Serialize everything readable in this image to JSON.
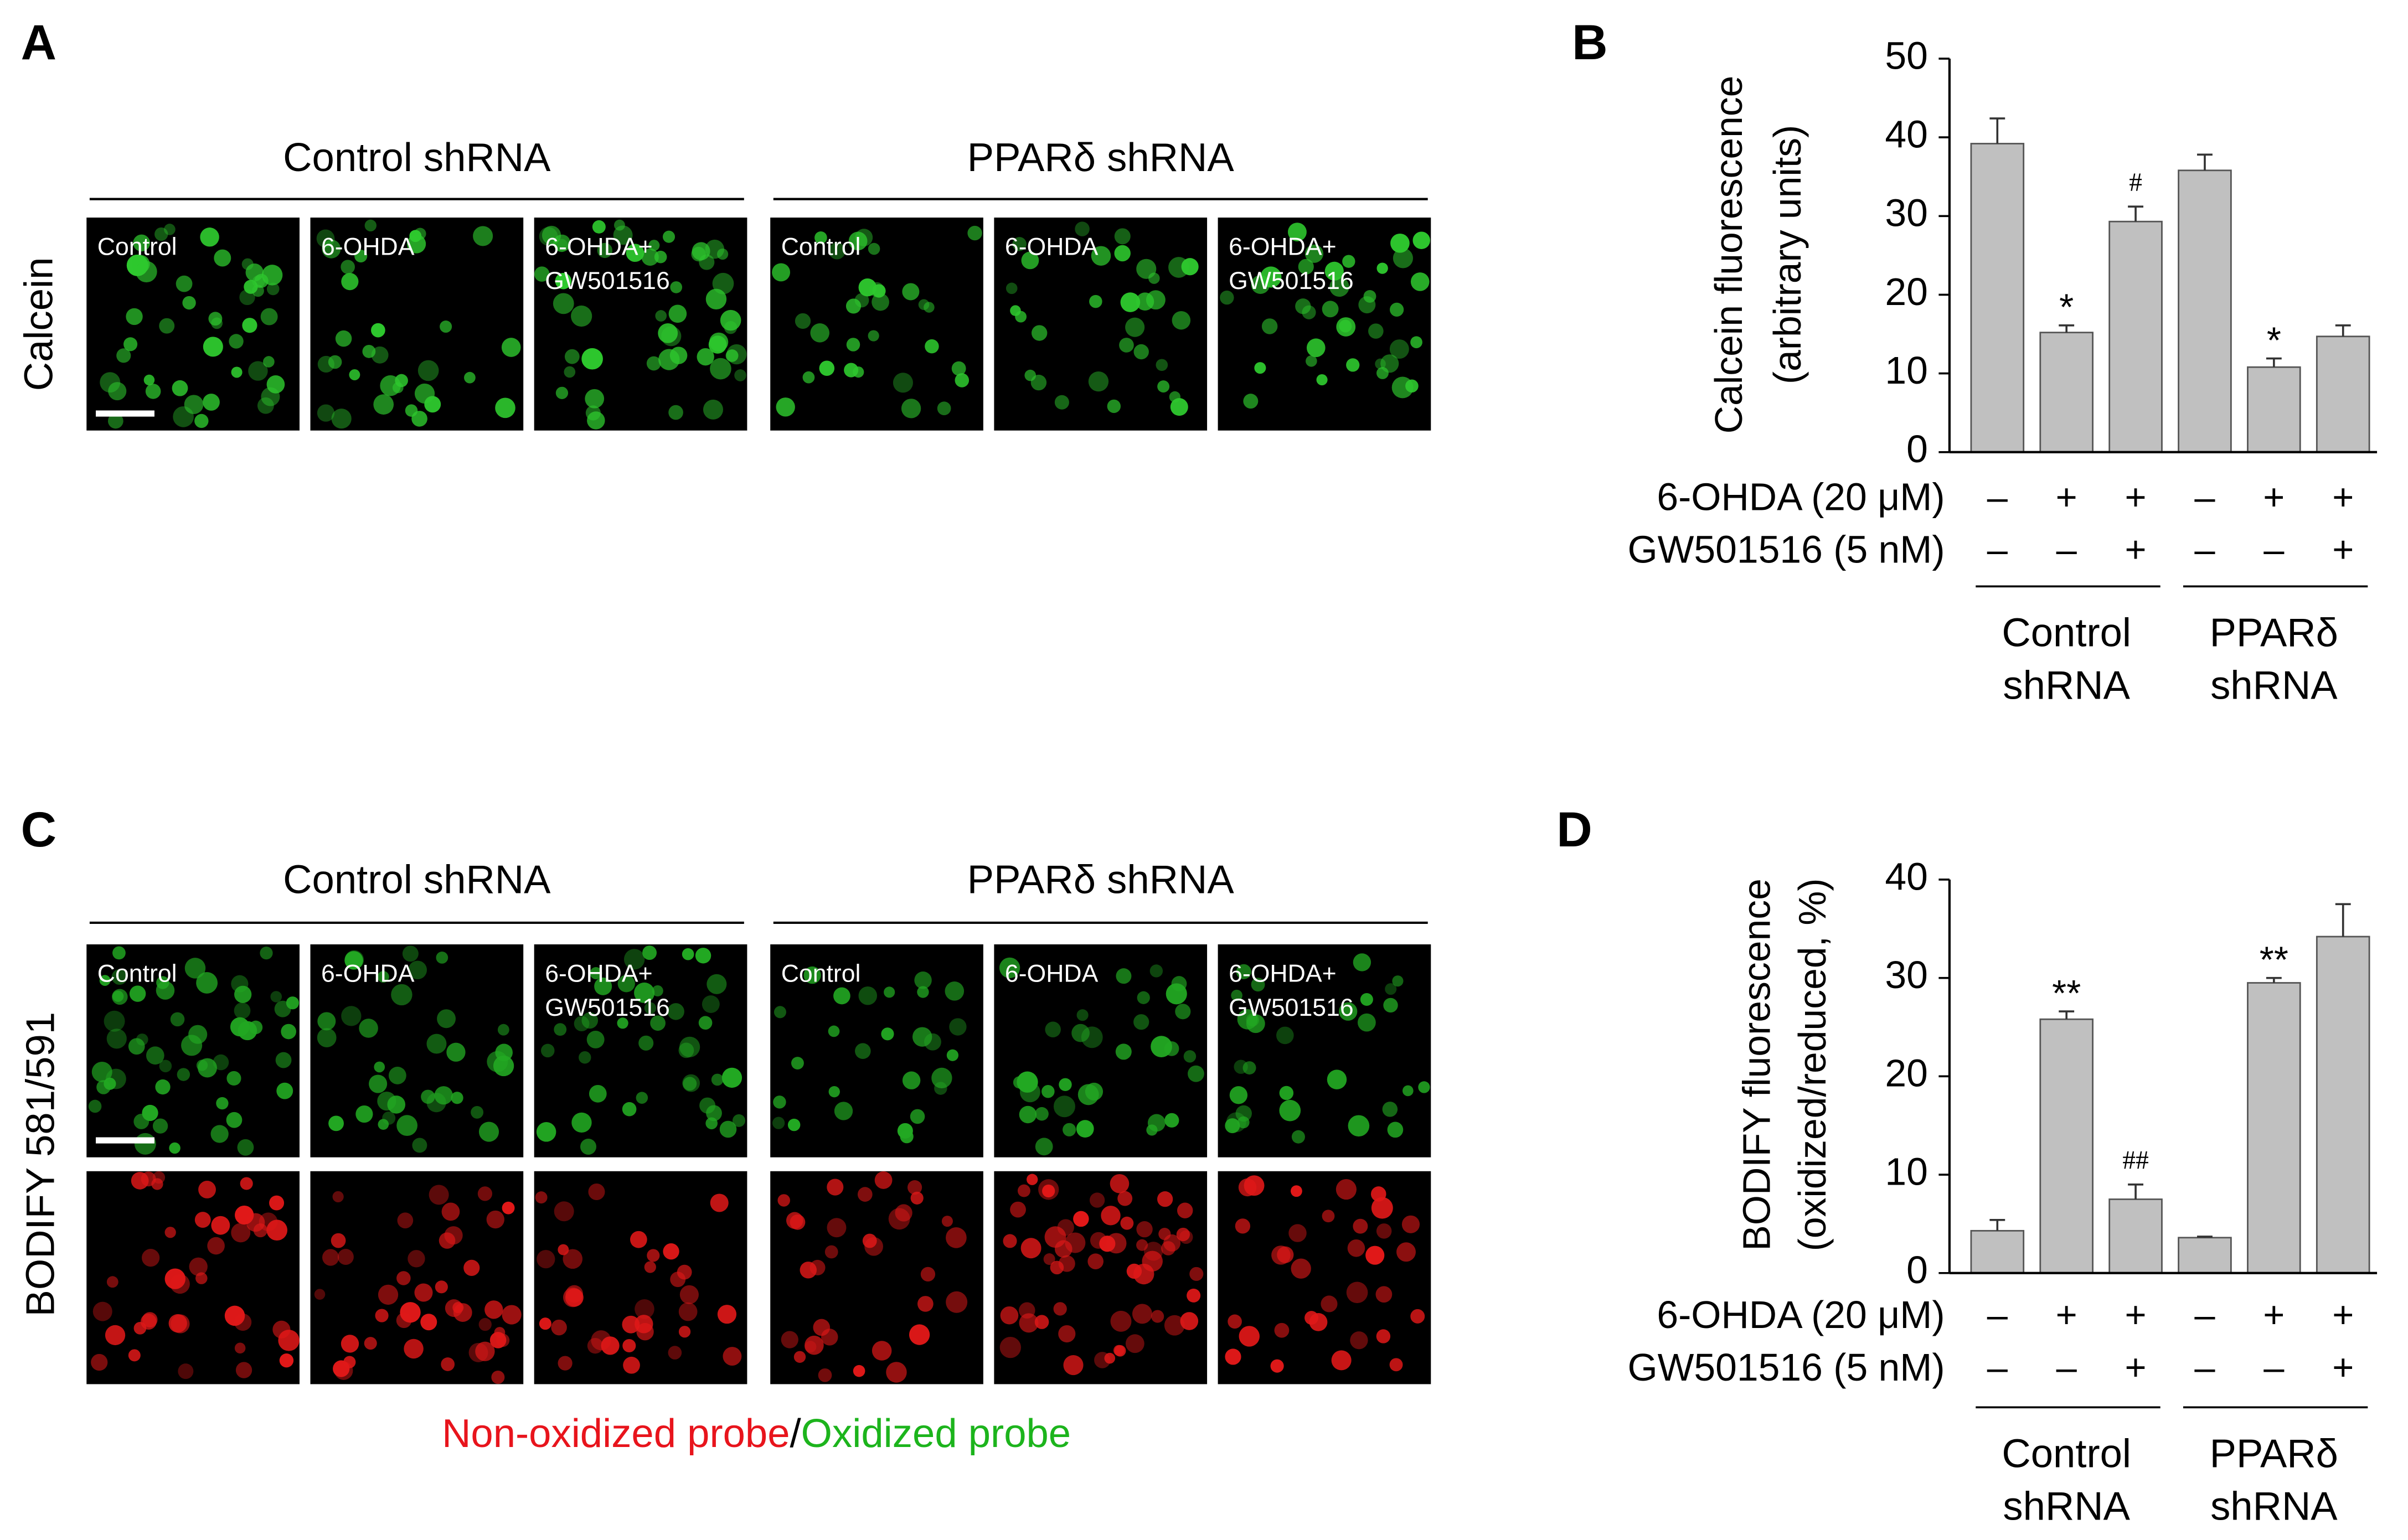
{
  "image_panels": [
    {
      "letter": "A",
      "row_labels": [
        "Calcein"
      ],
      "row_colors": [
        "#2ec82e"
      ],
      "groups": [
        {
          "title": "Control shRNA",
          "images": [
            [
              "Control"
            ],
            [
              "6-OHDA"
            ],
            [
              "6-OHDA+",
              "GW501516"
            ]
          ]
        },
        {
          "title": "PPARδ shRNA",
          "images": [
            [
              "Control"
            ],
            [
              "6-OHDA"
            ],
            [
              "6-OHDA+",
              "GW501516"
            ]
          ]
        }
      ]
    },
    {
      "letter": "C",
      "row_labels": [
        "BODIFY 581/591"
      ],
      "row_colors": [
        "#22a822",
        "#e01818"
      ],
      "groups": [
        {
          "title": "Control shRNA",
          "images": [
            [
              "Control"
            ],
            [
              "6-OHDA"
            ],
            [
              "6-OHDA+",
              "GW501516"
            ]
          ]
        },
        {
          "title": "PPARδ shRNA",
          "images": [
            [
              "Control"
            ],
            [
              "6-OHDA"
            ],
            [
              "6-OHDA+",
              "GW501516"
            ]
          ]
        }
      ],
      "caption": [
        {
          "text": "Non-oxidized probe",
          "color": "#e8141c"
        },
        {
          "text": "/",
          "color": "#000000"
        },
        {
          "text": "Oxidized probe",
          "color": "#1cb41c"
        }
      ]
    }
  ],
  "chart_data": [
    {
      "type": "bar",
      "letter": "B",
      "ylabel": [
        "Calcein fluorescence",
        "(arbitrary units)"
      ],
      "values": [
        39.2,
        15.2,
        29.3,
        35.8,
        10.8,
        14.7
      ],
      "errors": [
        3.2,
        0.9,
        1.9,
        2.0,
        1.1,
        1.4
      ],
      "annotations": [
        null,
        "*",
        "#",
        null,
        "*",
        null
      ],
      "color": "#c0c0c0",
      "ylim": [
        0,
        50
      ],
      "yticks": [
        0,
        10,
        20,
        30,
        40,
        50
      ],
      "treatments": [
        {
          "label": "6-OHDA (20 μM)",
          "signs": [
            "–",
            "+",
            "+",
            "–",
            "+",
            "+"
          ]
        },
        {
          "label": "GW501516 (5 nM)",
          "signs": [
            "–",
            "–",
            "+",
            "–",
            "–",
            "+"
          ]
        }
      ],
      "groups": [
        [
          "Control",
          "shRNA"
        ],
        [
          "PPARδ",
          "shRNA"
        ]
      ]
    },
    {
      "type": "bar",
      "letter": "D",
      "ylabel": [
        "BODIFY fluorescence",
        "(oxidized/reduced, %)"
      ],
      "values": [
        4.3,
        25.8,
        7.5,
        3.6,
        29.5,
        34.2
      ],
      "errors": [
        1.1,
        0.8,
        1.5,
        0.1,
        0.5,
        3.3
      ],
      "annotations": [
        null,
        "**",
        "##",
        null,
        "**",
        null
      ],
      "color": "#c0c0c0",
      "ylim": [
        0,
        40
      ],
      "yticks": [
        0,
        10,
        20,
        30,
        40
      ],
      "treatments": [
        {
          "label": "6-OHDA (20 μM)",
          "signs": [
            "–",
            "+",
            "+",
            "–",
            "+",
            "+"
          ]
        },
        {
          "label": "GW501516 (5 nM)",
          "signs": [
            "–",
            "–",
            "+",
            "–",
            "–",
            "+"
          ]
        }
      ],
      "groups": [
        [
          "Control",
          "shRNA"
        ],
        [
          "PPARδ",
          "shRNA"
        ]
      ]
    }
  ]
}
